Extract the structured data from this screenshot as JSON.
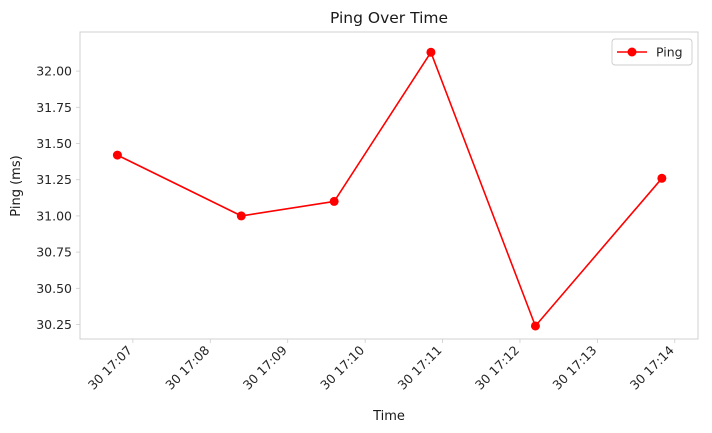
{
  "chart_data": {
    "type": "line",
    "title": "Ping Over Time",
    "xlabel": "Time",
    "ylabel": "Ping (ms)",
    "x_type": "time",
    "x_ticks": [
      "30 17:07",
      "30 17:08",
      "30 17:09",
      "30 17:10",
      "30 17:11",
      "30 17:12",
      "30 17:13",
      "30 17:14"
    ],
    "y_ticks": [
      "30.25",
      "30.50",
      "30.75",
      "31.00",
      "31.25",
      "31.50",
      "31.75",
      "32.00"
    ],
    "ylim": [
      30.15,
      32.27
    ],
    "xlim": [
      "17:06:19",
      "17:14:18"
    ],
    "grid": false,
    "legend_position": "top-right",
    "series": [
      {
        "name": "Ping",
        "color": "#ff0000",
        "marker": "circle",
        "x": [
          "17:06:48",
          "17:08:24",
          "17:09:36",
          "17:10:51",
          "17:12:12",
          "17:13:50"
        ],
        "y": [
          31.42,
          31.0,
          31.1,
          32.13,
          30.24,
          31.26
        ]
      }
    ]
  }
}
